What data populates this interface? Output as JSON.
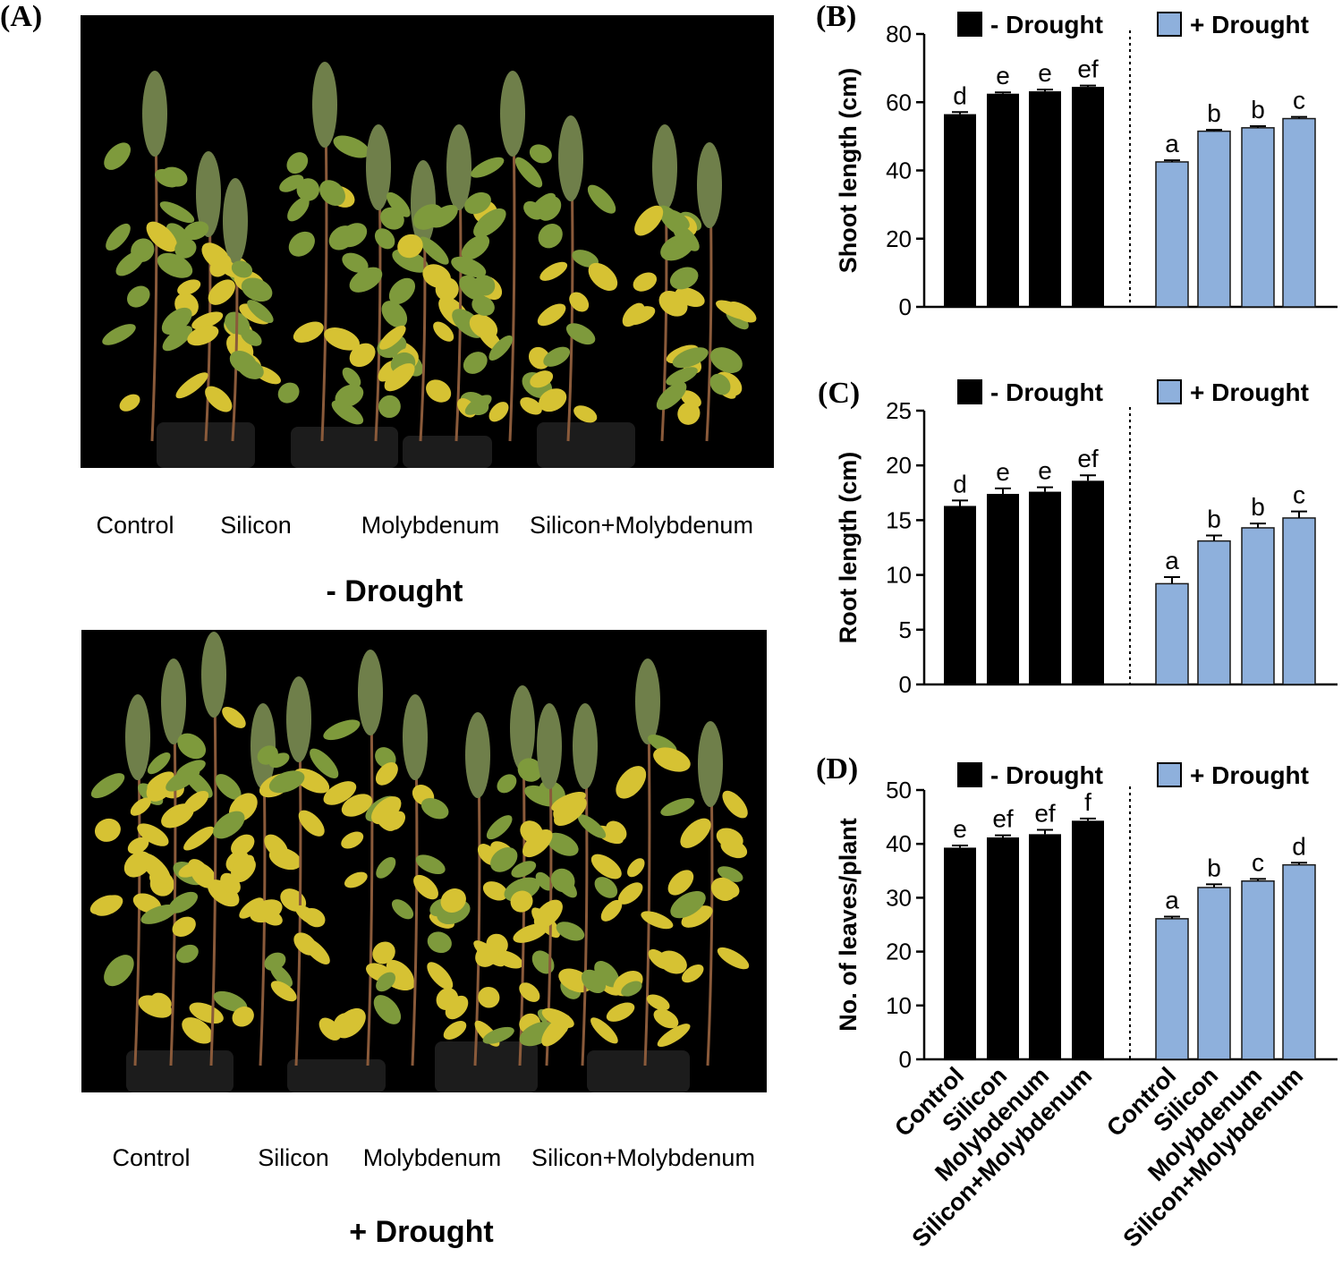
{
  "panel_a": {
    "label": "(A)",
    "top_photo": {
      "labels": [
        "Control",
        "Silicon",
        "Molybdenum",
        "Silicon+Molybdenum"
      ],
      "condition": "- Drought"
    },
    "bottom_photo": {
      "labels": [
        "Control",
        "Silicon",
        "Molybdenum",
        "Silicon+Molybdenum"
      ],
      "condition": "+ Drought"
    }
  },
  "colors": {
    "no_drought": "#000000",
    "drought": "#8eb0dc",
    "drought_edge": "#1a1a1a"
  },
  "chart_data": [
    {
      "panel": "(B)",
      "type": "bar",
      "title": "",
      "ylabel": "Shoot length (cm)",
      "xlabel": "",
      "ylim": [
        0,
        80
      ],
      "yticks": [
        0,
        20,
        40,
        60,
        80
      ],
      "categories": [
        "Control",
        "Silicon",
        "Molybdenum",
        "Silicon+Molybdenum"
      ],
      "legend": [
        "- Drought",
        "+ Drought"
      ],
      "series": [
        {
          "name": "- Drought",
          "values": [
            56.5,
            62.5,
            63.2,
            64.5
          ],
          "errors": [
            0.6,
            0.4,
            0.5,
            0.4
          ],
          "letters": [
            "d",
            "e",
            "e",
            "ef"
          ]
        },
        {
          "name": "+ Drought",
          "values": [
            42.5,
            51.5,
            52.5,
            55.2
          ],
          "errors": [
            0.5,
            0.4,
            0.5,
            0.5
          ],
          "letters": [
            "a",
            "b",
            "b",
            "c"
          ]
        }
      ]
    },
    {
      "panel": "(C)",
      "type": "bar",
      "title": "",
      "ylabel": "Root length (cm)",
      "xlabel": "",
      "ylim": [
        0,
        25
      ],
      "yticks": [
        0,
        5,
        10,
        15,
        20,
        25
      ],
      "categories": [
        "Control",
        "Silicon",
        "Molybdenum",
        "Silicon+Molybdenum"
      ],
      "legend": [
        "- Drought",
        "+ Drought"
      ],
      "series": [
        {
          "name": "- Drought",
          "values": [
            16.3,
            17.4,
            17.6,
            18.6
          ],
          "errors": [
            0.5,
            0.5,
            0.4,
            0.5
          ],
          "letters": [
            "d",
            "e",
            "e",
            "ef"
          ]
        },
        {
          "name": "+ Drought",
          "values": [
            9.2,
            13.1,
            14.3,
            15.2
          ],
          "errors": [
            0.6,
            0.5,
            0.4,
            0.6
          ],
          "letters": [
            "a",
            "b",
            "b",
            "c"
          ]
        }
      ]
    },
    {
      "panel": "(D)",
      "type": "bar",
      "title": "",
      "ylabel": "No. of leaves/plant",
      "xlabel": "",
      "ylim": [
        0,
        50
      ],
      "yticks": [
        0,
        10,
        20,
        30,
        40,
        50
      ],
      "categories": [
        "Control",
        "Silicon",
        "Molybdenum",
        "Silicon+Molybdenum"
      ],
      "legend": [
        "- Drought",
        "+ Drought"
      ],
      "series": [
        {
          "name": "- Drought",
          "values": [
            39.3,
            41.2,
            41.8,
            44.3
          ],
          "errors": [
            0.4,
            0.4,
            0.8,
            0.4
          ],
          "letters": [
            "e",
            "ef",
            "ef",
            "f"
          ]
        },
        {
          "name": "+ Drought",
          "values": [
            26.1,
            31.9,
            33.1,
            36.1
          ],
          "errors": [
            0.4,
            0.6,
            0.4,
            0.4
          ],
          "letters": [
            "a",
            "b",
            "c",
            "d"
          ]
        }
      ]
    }
  ]
}
